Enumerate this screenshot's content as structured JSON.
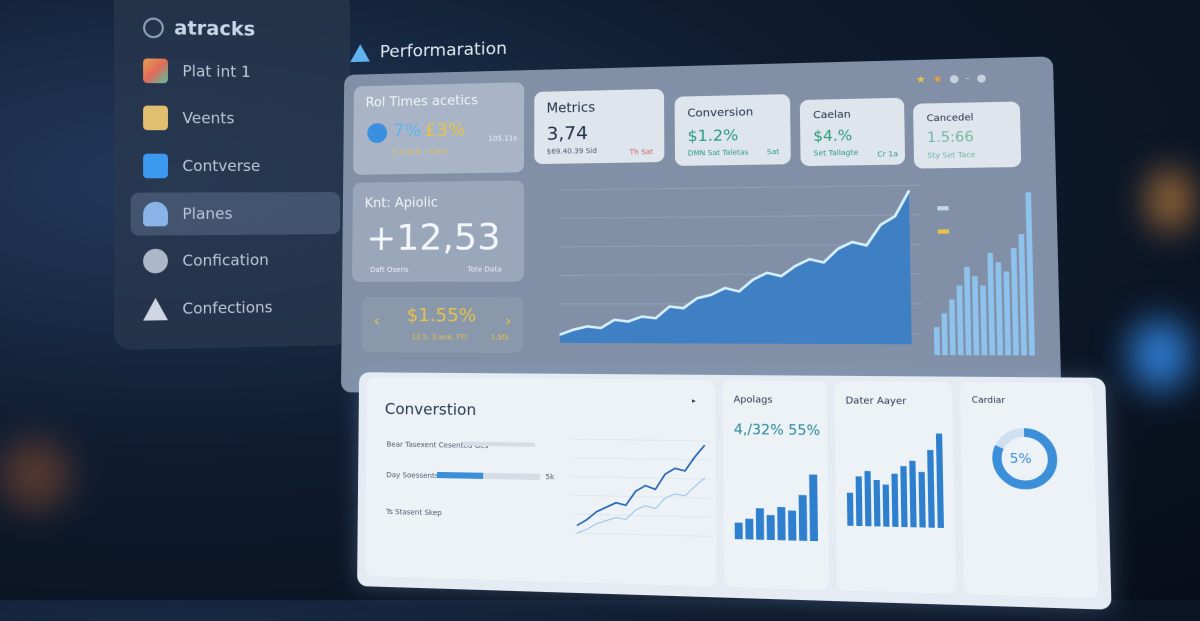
{
  "sidebar": {
    "brand": "atracks",
    "items": [
      {
        "label": "Plat int 1",
        "icon": "grid-icon",
        "color": "#e8a050"
      },
      {
        "label": "Veents",
        "icon": "calendar-icon",
        "color": "#e0c070"
      },
      {
        "label": "Contverse",
        "icon": "chart-icon",
        "color": "#3b9af0"
      },
      {
        "label": "Planes",
        "icon": "users-icon",
        "color": "#8ab4e8",
        "active": true
      },
      {
        "label": "Confication",
        "icon": "profile-icon",
        "color": "#aab8c8"
      },
      {
        "label": "Confections",
        "icon": "triangle-icon",
        "color": "#cdd6e2"
      }
    ]
  },
  "header": {
    "title": "Performaration"
  },
  "cards": {
    "roi": {
      "title": "Rol Times acetics",
      "value_blue": "7%",
      "value_yellow": "£3%",
      "sub": "5.1 lw 8. / Cons",
      "side": "105.11s"
    },
    "kpi": {
      "title": "Knt: Apiolic",
      "value": "+12,53",
      "left": "Daft Osens",
      "right": "Tote Data"
    },
    "rate": {
      "value": "$1.55%",
      "sub": "12.5. 3.ane. FTI",
      "side": "1.5fs"
    },
    "metrics": {
      "title": "Metrics",
      "value": "3,74",
      "sub": "$69.40.39 Sid",
      "side": "Th Sat"
    },
    "conversion": {
      "title": "Conversion",
      "value": "$1.2%",
      "sub": "DMN Sat Taletas",
      "side": "Sat"
    },
    "cardan": {
      "title": "Caelan",
      "value": "$4.%",
      "sub": "Set Tallagte",
      "side": "Cr 1a"
    },
    "cancedel": {
      "title": "Cancedel",
      "value": "1.5:66",
      "sub": "Sty Set Tace"
    }
  },
  "lower": {
    "conversion": {
      "title": "Converstion",
      "rows": [
        "Bear Tasexent Cesented Ges",
        "Day Soessents",
        "Ts Stasent Skep"
      ],
      "row_value": "5k",
      "progress": 0.45
    },
    "apolags": {
      "title": "Apolags",
      "value": "4,/32% 55%"
    },
    "bars2": {
      "title": "Dater Aayer"
    },
    "donut": {
      "title": "Cardiar",
      "label": "5%",
      "fraction": 0.82
    }
  },
  "colors": {
    "accent": "#4a90d9",
    "yellow": "#e6c24a",
    "teal": "#2a9d7a"
  },
  "chart_data": [
    {
      "type": "area",
      "values": [
        5,
        8,
        10,
        9,
        14,
        13,
        16,
        15,
        22,
        21,
        27,
        29,
        33,
        31,
        38,
        42,
        40,
        46,
        50,
        48,
        56,
        60,
        58,
        70,
        75,
        90
      ]
    },
    {
      "type": "bar",
      "values": [
        12,
        18,
        24,
        30,
        38,
        34,
        30,
        44,
        40,
        36,
        46,
        52,
        70
      ]
    },
    {
      "type": "line",
      "values": [
        10,
        15,
        22,
        26,
        30,
        28,
        40,
        45,
        42,
        55,
        60,
        58,
        70,
        80
      ]
    },
    {
      "type": "bar",
      "values": [
        20,
        25,
        38,
        30,
        40,
        36,
        55,
        80
      ]
    },
    {
      "type": "bar",
      "values": [
        30,
        45,
        50,
        42,
        38,
        48,
        55,
        60,
        50,
        70,
        85
      ]
    }
  ]
}
